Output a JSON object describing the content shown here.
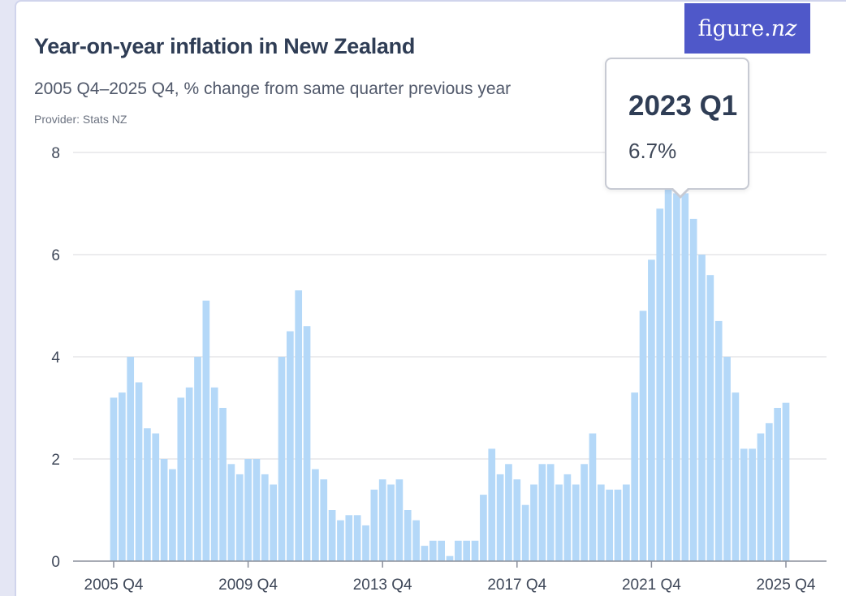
{
  "header": {
    "title": "Year-on-year inflation in New Zealand",
    "subtitle": "2005 Q4–2025 Q4, % change from same quarter previous year",
    "provider": "Provider: Stats NZ",
    "logo_main": "figure.",
    "logo_accent": "nz"
  },
  "tooltip": {
    "quarter": "2023 Q1",
    "value": "6.7%"
  },
  "colors": {
    "bar": "#b4d8f8",
    "grid": "#d8d8de",
    "axis_text": "#3e4758",
    "logo_bg": "#4f58c9"
  },
  "chart_data": {
    "type": "bar",
    "title": "Year-on-year inflation in New Zealand",
    "subtitle": "2005 Q4–2025 Q4, % change from same quarter previous year",
    "xlabel": "",
    "ylabel": "",
    "ylim": [
      0,
      8
    ],
    "yticks": [
      "0",
      "2",
      "4",
      "6",
      "8"
    ],
    "xticks": [
      "2005 Q4",
      "2009 Q4",
      "2013 Q4",
      "2017 Q4",
      "2021 Q4",
      "2025 Q4"
    ],
    "grid": true,
    "categories": [
      "2005 Q4",
      "2006 Q1",
      "2006 Q2",
      "2006 Q3",
      "2006 Q4",
      "2007 Q1",
      "2007 Q2",
      "2007 Q3",
      "2007 Q4",
      "2008 Q1",
      "2008 Q2",
      "2008 Q3",
      "2008 Q4",
      "2009 Q1",
      "2009 Q2",
      "2009 Q3",
      "2009 Q4",
      "2010 Q1",
      "2010 Q2",
      "2010 Q3",
      "2010 Q4",
      "2011 Q1",
      "2011 Q2",
      "2011 Q3",
      "2011 Q4",
      "2012 Q1",
      "2012 Q2",
      "2012 Q3",
      "2012 Q4",
      "2013 Q1",
      "2013 Q2",
      "2013 Q3",
      "2013 Q4",
      "2014 Q1",
      "2014 Q2",
      "2014 Q3",
      "2014 Q4",
      "2015 Q1",
      "2015 Q2",
      "2015 Q3",
      "2015 Q4",
      "2016 Q1",
      "2016 Q2",
      "2016 Q3",
      "2016 Q4",
      "2017 Q1",
      "2017 Q2",
      "2017 Q3",
      "2017 Q4",
      "2018 Q1",
      "2018 Q2",
      "2018 Q3",
      "2018 Q4",
      "2019 Q1",
      "2019 Q2",
      "2019 Q3",
      "2019 Q4",
      "2020 Q1",
      "2020 Q2",
      "2020 Q3",
      "2020 Q4",
      "2021 Q1",
      "2021 Q2",
      "2021 Q3",
      "2021 Q4",
      "2022 Q1",
      "2022 Q2",
      "2022 Q3",
      "2022 Q4",
      "2023 Q1",
      "2023 Q2",
      "2023 Q3",
      "2023 Q4",
      "2024 Q1",
      "2024 Q2",
      "2024 Q3",
      "2024 Q4",
      "2025 Q1",
      "2025 Q2",
      "2025 Q3",
      "2025 Q4"
    ],
    "values": [
      3.2,
      3.3,
      4.0,
      3.5,
      2.6,
      2.5,
      2.0,
      1.8,
      3.2,
      3.4,
      4.0,
      5.1,
      3.4,
      3.0,
      1.9,
      1.7,
      2.0,
      2.0,
      1.7,
      1.5,
      4.0,
      4.5,
      5.3,
      4.6,
      1.8,
      1.6,
      1.0,
      0.8,
      0.9,
      0.9,
      0.7,
      1.4,
      1.6,
      1.5,
      1.6,
      1.0,
      0.8,
      0.3,
      0.4,
      0.4,
      0.1,
      0.4,
      0.4,
      0.4,
      1.3,
      2.2,
      1.7,
      1.9,
      1.6,
      1.1,
      1.5,
      1.9,
      1.9,
      1.5,
      1.7,
      1.5,
      1.9,
      2.5,
      1.5,
      1.4,
      1.4,
      1.5,
      3.3,
      4.9,
      5.9,
      6.9,
      7.3,
      7.2,
      7.2,
      6.7,
      6.0,
      5.6,
      4.7,
      4.0,
      3.3,
      2.2,
      2.2,
      2.5,
      2.7,
      3.0,
      3.1
    ],
    "highlight": {
      "category": "2023 Q1",
      "value": 6.7
    }
  }
}
